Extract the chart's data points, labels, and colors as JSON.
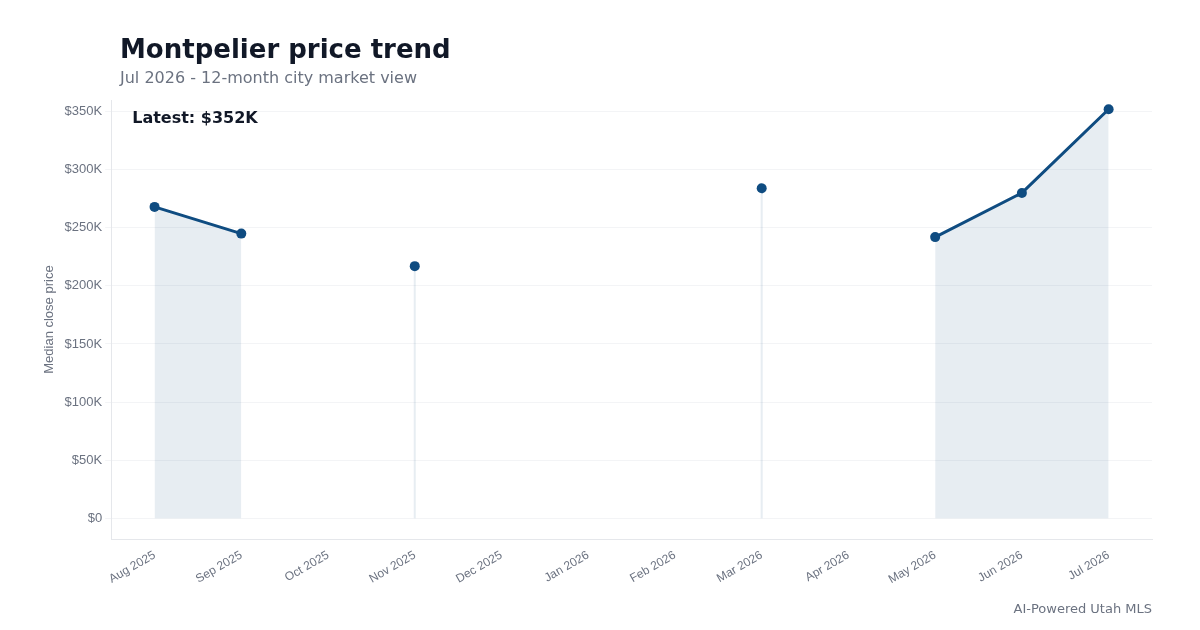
{
  "chart_data": {
    "type": "area",
    "title": "Montpelier price trend",
    "subtitle": "Jul 2026 - 12-month city market view",
    "ylabel": "Median close price",
    "categories": [
      "Aug 2025",
      "Sep 2025",
      "Oct 2025",
      "Nov 2025",
      "Dec 2025",
      "Jan 2026",
      "Feb 2026",
      "Mar 2026",
      "Apr 2026",
      "May 2026",
      "Jun 2026",
      "Jul 2026"
    ],
    "series": [
      {
        "color": "#0f4c81",
        "values": [
          268000,
          245000,
          null,
          217000,
          null,
          null,
          null,
          284000,
          null,
          242000,
          280000,
          352000
        ]
      }
    ],
    "ylim": [
      -18000,
      360000
    ],
    "yticks": [
      {
        "value": 0,
        "label": "$0"
      },
      {
        "value": 50000,
        "label": "$50K"
      },
      {
        "value": 100000,
        "label": "$100K"
      },
      {
        "value": 150000,
        "label": "$150K"
      },
      {
        "value": 200000,
        "label": "$200K"
      },
      {
        "value": 250000,
        "label": "$250K"
      },
      {
        "value": 300000,
        "label": "$300K"
      },
      {
        "value": 350000,
        "label": "$350K"
      }
    ],
    "grid": "y",
    "legend": false,
    "marker": "circle",
    "line_style": "solid",
    "annotations": [
      "Latest: $352K",
      "AI-Powered Utah MLS"
    ]
  }
}
